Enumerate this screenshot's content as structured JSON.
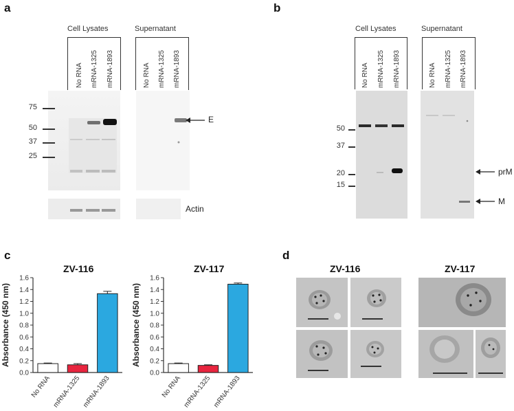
{
  "panels": {
    "a": {
      "letter": "a",
      "group_headers": [
        "Cell Lysates",
        "Supernatant"
      ],
      "lanes": [
        "No RNA",
        "mRNA-1325",
        "mRNA-1893",
        "No RNA",
        "mRNA-1325",
        "mRNA-1893"
      ],
      "markers": [
        "75",
        "50",
        "37",
        "25"
      ],
      "arrow_label": "E",
      "loading_label": "Actin"
    },
    "b": {
      "letter": "b",
      "group_headers": [
        "Cell Lysates",
        "Supernatant"
      ],
      "lanes": [
        "No RNA",
        "mRNA-1325",
        "mRNA-1893",
        "No RNA",
        "mRNA-1325",
        "mRNA-1893"
      ],
      "markers": [
        "50",
        "37",
        "20",
        "15"
      ],
      "arrow_labels": [
        "prM",
        "M"
      ]
    },
    "c": {
      "letter": "c"
    },
    "d": {
      "letter": "d",
      "titles": [
        "ZV-116",
        "ZV-117"
      ]
    }
  },
  "chart_data": [
    {
      "type": "bar",
      "title": "ZV-116",
      "ylabel": "Absorbance (450 nm)",
      "categories": [
        "No RNA",
        "mRNA-1325",
        "mRNA-1893"
      ],
      "values": [
        0.15,
        0.13,
        1.33
      ],
      "errors": [
        0.01,
        0.02,
        0.04
      ],
      "colors": [
        "#ffffff",
        "#e8253f",
        "#2ba8e0"
      ],
      "ylim": [
        0,
        1.6
      ],
      "yticks": [
        "0.0",
        "0.2",
        "0.4",
        "0.6",
        "0.8",
        "1.0",
        "1.2",
        "1.4",
        "1.6"
      ]
    },
    {
      "type": "bar",
      "title": "ZV-117",
      "ylabel": "Absorbance (450 nm)",
      "categories": [
        "No RNA",
        "mRNA-1325",
        "mRNA-1893"
      ],
      "values": [
        0.15,
        0.12,
        1.49
      ],
      "errors": [
        0.01,
        0.01,
        0.02
      ],
      "colors": [
        "#ffffff",
        "#e8253f",
        "#2ba8e0"
      ],
      "ylim": [
        0,
        1.6
      ],
      "yticks": [
        "0.0",
        "0.2",
        "0.4",
        "0.6",
        "0.8",
        "1.0",
        "1.2",
        "1.4",
        "1.6"
      ]
    }
  ]
}
